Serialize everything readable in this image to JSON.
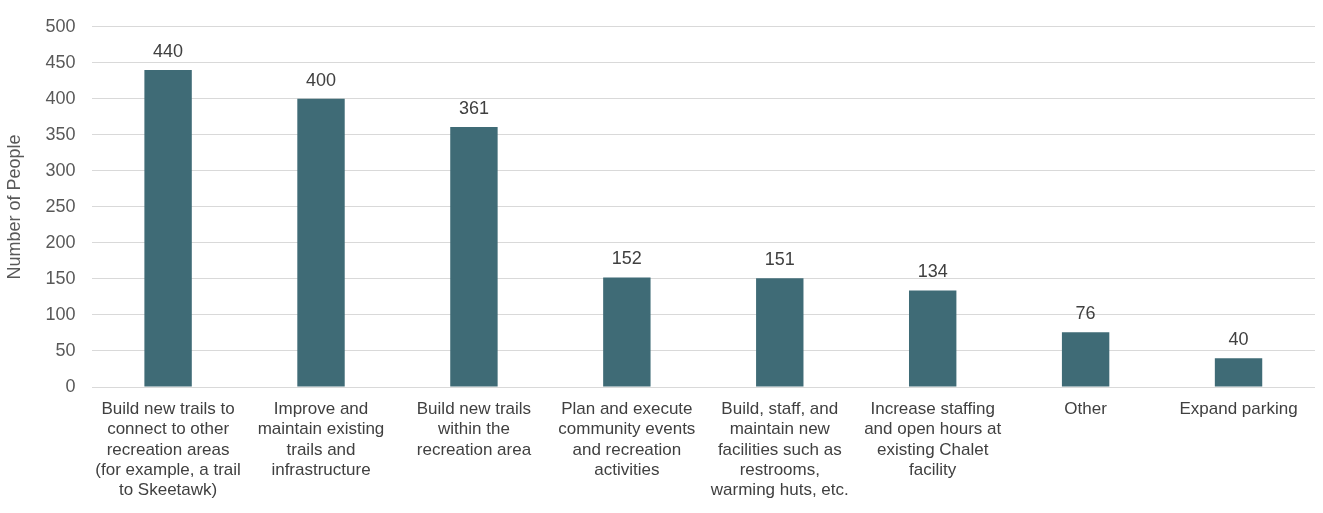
{
  "chart_data": {
    "type": "bar",
    "ylabel": "Number of People",
    "categories": [
      "Build new trails to connect to other recreation areas (for example, a trail to Skeetawk)",
      "Improve and maintain existing trails and infrastructure",
      "Build new trails within the recreation area",
      "Plan and execute community events and recreation activities",
      "Build, staff, and maintain new facilities such as restrooms, warming huts, etc.",
      "Increase staffing and open hours at existing Chalet facility",
      "Other",
      "Expand parking"
    ],
    "values": [
      440,
      400,
      361,
      152,
      151,
      134,
      76,
      40
    ],
    "color": "#3f6b76",
    "ylim": [
      0,
      500
    ],
    "yticks": [
      0,
      50,
      100,
      150,
      200,
      250,
      300,
      350,
      400,
      450,
      500
    ],
    "grid": "y",
    "data_labels": true
  }
}
